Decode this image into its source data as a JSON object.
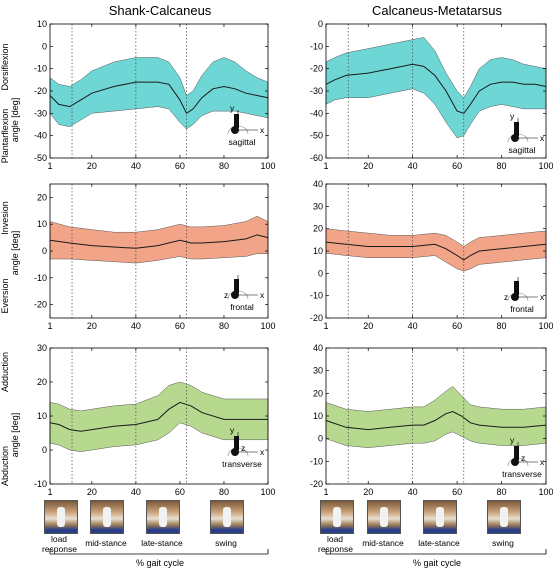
{
  "titles": {
    "left": "Shank-Calcaneus",
    "right": "Calcaneus-Metatarsus"
  },
  "colors": {
    "sagittal": "#6fd6d6",
    "frontal": "#f2a488",
    "transverse": "#b6d98f",
    "line": "#1a1a1a"
  },
  "ylabels": {
    "sagittal": {
      "top": "Dorsiflexion",
      "mid": "angle [deg]",
      "bottom": "Plantarflexion"
    },
    "frontal": {
      "top": "Invesion",
      "mid": "angle [deg]",
      "bottom": "Eversion"
    },
    "transverse": {
      "top": "Adduction",
      "mid": "angle [deg]",
      "bottom": "Abduction"
    }
  },
  "xticks": [
    1,
    20,
    40,
    60,
    80,
    100
  ],
  "phase_lines": [
    11,
    40,
    63
  ],
  "planes": {
    "sagittal": "sagittal",
    "frontal": "frontal",
    "transverse": "transverse"
  },
  "axis_letters": {
    "x": "x",
    "y": "y",
    "z": "z"
  },
  "phases": [
    {
      "label": "load response",
      "left": {
        "thumb": 44,
        "text": 25
      },
      "right": {
        "thumb": 320,
        "text": 302
      }
    },
    {
      "label": "mid-stance",
      "left": {
        "thumb": 90,
        "text": 71
      },
      "right": {
        "thumb": 367,
        "text": 348
      }
    },
    {
      "label": "late-stance",
      "left": {
        "thumb": 146,
        "text": 127
      },
      "right": {
        "thumb": 423,
        "text": 404
      }
    },
    {
      "label": "swing",
      "left": {
        "thumb": 210,
        "text": 191
      },
      "right": {
        "thumb": 487,
        "text": 468
      }
    }
  ],
  "xlabel": "% gait cycle",
  "chart_data": [
    {
      "type": "area",
      "panel": "shank-calcaneus-sagittal",
      "plane": "sagittal",
      "ylim": [
        -50,
        10
      ],
      "yticks": [
        -50,
        -40,
        -30,
        -20,
        -10,
        0,
        10
      ],
      "xlim": [
        1,
        100
      ],
      "x": [
        1,
        5,
        10,
        15,
        20,
        30,
        40,
        50,
        55,
        60,
        63,
        66,
        70,
        75,
        80,
        85,
        90,
        95,
        100
      ],
      "mean": [
        -22,
        -26,
        -27,
        -24,
        -21,
        -18,
        -16,
        -16,
        -17,
        -24,
        -30,
        -28,
        -23,
        -19,
        -18,
        -19,
        -21,
        -22,
        -23
      ],
      "upper": [
        -14,
        -17,
        -18,
        -15,
        -11,
        -7,
        -5,
        -5,
        -7,
        -14,
        -22,
        -20,
        -13,
        -7,
        -5,
        -7,
        -11,
        -14,
        -16
      ],
      "lower": [
        -30,
        -35,
        -36,
        -33,
        -30,
        -29,
        -28,
        -27,
        -28,
        -34,
        -37,
        -35,
        -31,
        -29,
        -29,
        -29,
        -30,
        -31,
        -32
      ]
    },
    {
      "type": "area",
      "panel": "calcaneus-metatarsus-sagittal",
      "plane": "sagittal",
      "ylim": [
        -60,
        0
      ],
      "yticks": [
        -60,
        -50,
        -40,
        -30,
        -20,
        -10,
        0
      ],
      "xlim": [
        1,
        100
      ],
      "x": [
        1,
        5,
        10,
        20,
        30,
        40,
        45,
        50,
        55,
        60,
        63,
        66,
        70,
        75,
        80,
        85,
        90,
        95,
        100
      ],
      "mean": [
        -27,
        -25,
        -23,
        -22,
        -20,
        -18,
        -19,
        -23,
        -30,
        -39,
        -40,
        -36,
        -30,
        -27,
        -26,
        -26,
        -27,
        -27,
        -28
      ],
      "upper": [
        -17,
        -15,
        -13,
        -11,
        -9,
        -7,
        -6,
        -12,
        -22,
        -30,
        -33,
        -28,
        -20,
        -16,
        -15,
        -16,
        -18,
        -19,
        -20
      ],
      "lower": [
        -36,
        -34,
        -33,
        -33,
        -31,
        -29,
        -31,
        -36,
        -44,
        -51,
        -50,
        -45,
        -39,
        -37,
        -36,
        -37,
        -38,
        -38,
        -38
      ]
    },
    {
      "type": "area",
      "panel": "shank-calcaneus-frontal",
      "plane": "frontal",
      "ylim": [
        -25,
        25
      ],
      "yticks": [
        -20,
        -10,
        0,
        10,
        20
      ],
      "xlim": [
        1,
        100
      ],
      "x": [
        1,
        10,
        20,
        30,
        40,
        50,
        60,
        65,
        70,
        80,
        90,
        95,
        100
      ],
      "mean": [
        4,
        3,
        2,
        1.5,
        1,
        2,
        4,
        3,
        3,
        3.5,
        4.5,
        6,
        5
      ],
      "upper": [
        11,
        9,
        8,
        7,
        7,
        8,
        10,
        9,
        9,
        9.5,
        11,
        13,
        11
      ],
      "lower": [
        -3,
        -3,
        -3.5,
        -4,
        -4.5,
        -3.5,
        -2,
        -3,
        -3,
        -2.5,
        -2,
        -1,
        -1
      ]
    },
    {
      "type": "area",
      "panel": "calcaneus-metatarsus-frontal",
      "plane": "frontal",
      "ylim": [
        -20,
        40
      ],
      "yticks": [
        -20,
        -10,
        0,
        10,
        20,
        30,
        40
      ],
      "xlim": [
        1,
        100
      ],
      "x": [
        1,
        10,
        20,
        30,
        40,
        50,
        55,
        60,
        63,
        66,
        70,
        80,
        90,
        100
      ],
      "mean": [
        14,
        13,
        12,
        12,
        12,
        13,
        11,
        8,
        6,
        8,
        10,
        11,
        12,
        13
      ],
      "upper": [
        20,
        19,
        18,
        17,
        17,
        18,
        17,
        14,
        12,
        14,
        16,
        17,
        18,
        19
      ],
      "lower": [
        9,
        8,
        7,
        7,
        7,
        8,
        5,
        2,
        1,
        2,
        4,
        5,
        6,
        7
      ]
    },
    {
      "type": "area",
      "panel": "shank-calcaneus-transverse",
      "plane": "transverse",
      "ylim": [
        -10,
        30
      ],
      "yticks": [
        -10,
        0,
        10,
        20,
        30
      ],
      "xlim": [
        1,
        100
      ],
      "x": [
        1,
        5,
        10,
        15,
        20,
        30,
        40,
        50,
        55,
        60,
        65,
        70,
        80,
        90,
        100
      ],
      "mean": [
        8,
        7.5,
        6,
        5.5,
        6,
        7,
        7.5,
        9,
        12,
        14,
        13,
        11,
        9,
        9,
        9
      ],
      "upper": [
        14,
        13.5,
        12,
        11.5,
        12,
        13,
        13.5,
        16,
        19,
        20,
        19,
        17,
        15,
        15,
        15
      ],
      "lower": [
        2,
        1.5,
        0,
        -0.5,
        0,
        1,
        1.5,
        3,
        5,
        8,
        7,
        5,
        3,
        3,
        3
      ]
    },
    {
      "type": "area",
      "panel": "calcaneus-metatarsus-transverse",
      "plane": "transverse",
      "ylim": [
        -20,
        40
      ],
      "yticks": [
        -20,
        -10,
        0,
        10,
        20,
        30,
        40
      ],
      "xlim": [
        1,
        100
      ],
      "x": [
        1,
        10,
        20,
        30,
        40,
        45,
        50,
        55,
        58,
        62,
        66,
        70,
        80,
        90,
        100
      ],
      "mean": [
        8,
        5,
        4,
        5,
        6,
        6,
        8,
        11,
        12,
        10,
        7,
        6,
        5,
        5,
        6
      ],
      "upper": [
        16,
        13,
        12,
        13,
        14,
        14,
        17,
        21,
        23,
        19,
        15,
        14,
        13,
        13,
        14
      ],
      "lower": [
        0,
        -3,
        -4,
        -3,
        -2,
        -2,
        -1,
        2,
        3,
        1,
        -1,
        -2,
        -3,
        -3,
        -2
      ]
    }
  ]
}
